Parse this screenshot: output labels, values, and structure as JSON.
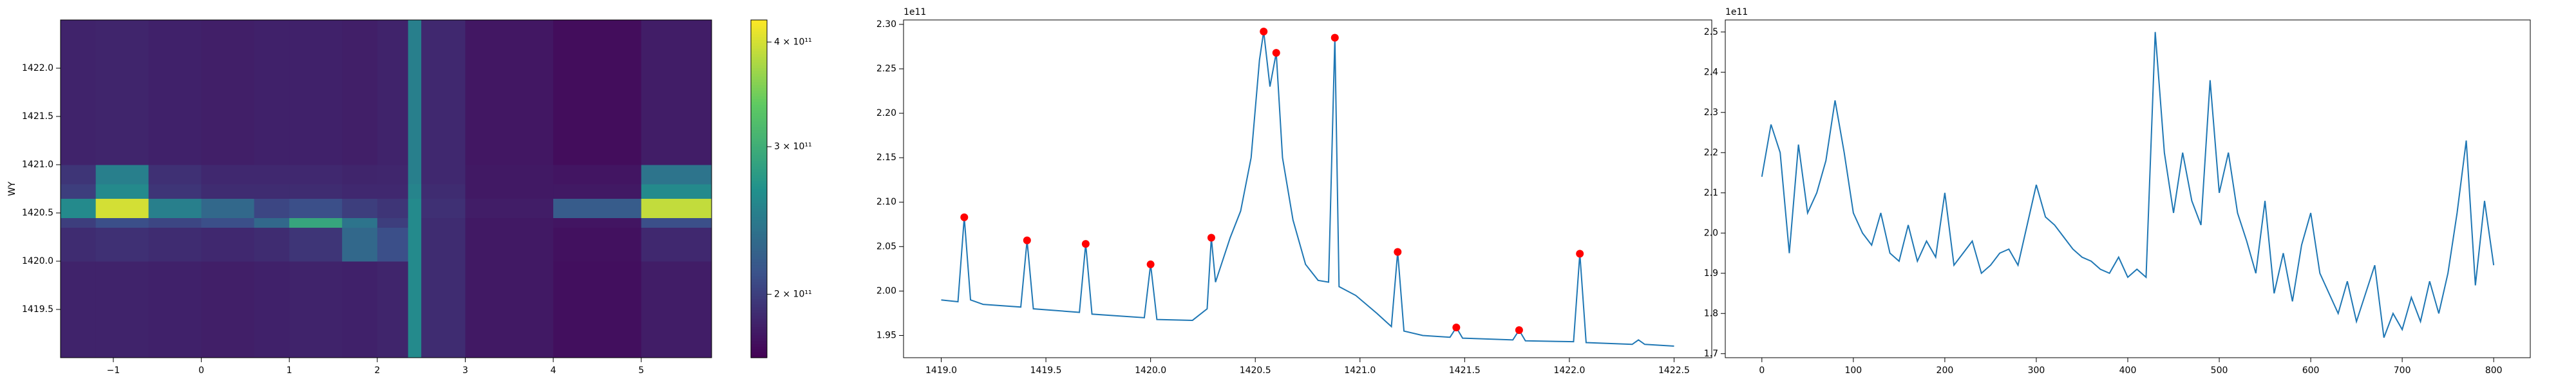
{
  "chart_data": [
    {
      "type": "heatmap",
      "ylabel": "WY",
      "colormap": "viridis",
      "zscale": "log",
      "xlim": [
        -1.6,
        5.8
      ],
      "ylim": [
        1419.0,
        1422.5
      ],
      "xticks": [
        {
          "value": -1,
          "label": "−1"
        },
        0,
        1,
        2,
        3,
        4,
        5
      ],
      "yticks": [
        1419.5,
        {
          "value": 1420.0,
          "label": "1420.0"
        },
        1420.5,
        {
          "value": 1421.0,
          "label": "1421.0"
        },
        1421.5,
        {
          "value": 1422.0,
          "label": "1422.0"
        }
      ],
      "xedges": [
        -1.6,
        -1.2,
        -0.6,
        0,
        0.6,
        1.0,
        1.6,
        2.0,
        2.35,
        2.5,
        3.0,
        4.0,
        5.0,
        5.8
      ],
      "yedges": [
        1419.0,
        1420.0,
        1420.35,
        1420.45,
        1420.65,
        1420.8,
        1421.0,
        1422.5
      ],
      "z": [
        [
          185000000000.0,
          185000000000.0,
          184000000000.0,
          183000000000.0,
          184000000000.0,
          185000000000.0,
          184000000000.0,
          186000000000.0,
          260000000000.0,
          190000000000.0,
          180000000000.0,
          175000000000.0,
          182000000000.0
        ],
        [
          190000000000.0,
          192000000000.0,
          190000000000.0,
          188000000000.0,
          190000000000.0,
          195000000000.0,
          230000000000.0,
          210000000000.0,
          260000000000.0,
          190000000000.0,
          180000000000.0,
          176000000000.0,
          188000000000.0
        ],
        [
          200000000000.0,
          210000000000.0,
          205000000000.0,
          210000000000.0,
          230000000000.0,
          290000000000.0,
          240000000000.0,
          200000000000.0,
          260000000000.0,
          190000000000.0,
          180000000000.0,
          178000000000.0,
          210000000000.0
        ],
        [
          260000000000.0,
          400000000000.0,
          250000000000.0,
          230000000000.0,
          205000000000.0,
          210000000000.0,
          200000000000.0,
          195000000000.0,
          260000000000.0,
          192000000000.0,
          182000000000.0,
          220000000000.0,
          390000000000.0
        ],
        [
          200000000000.0,
          260000000000.0,
          195000000000.0,
          190000000000.0,
          190000000000.0,
          190000000000.0,
          188000000000.0,
          188000000000.0,
          255000000000.0,
          190000000000.0,
          180000000000.0,
          180000000000.0,
          260000000000.0
        ],
        [
          195000000000.0,
          250000000000.0,
          192000000000.0,
          188000000000.0,
          188000000000.0,
          188000000000.0,
          186000000000.0,
          187000000000.0,
          250000000000.0,
          188000000000.0,
          180000000000.0,
          178000000000.0,
          240000000000.0
        ],
        [
          185000000000.0,
          186000000000.0,
          184000000000.0,
          183000000000.0,
          184000000000.0,
          184000000000.0,
          183000000000.0,
          185000000000.0,
          250000000000.0,
          188000000000.0,
          179000000000.0,
          174000000000.0,
          182000000000.0
        ]
      ],
      "zlim": [
        168000000000.0,
        425000000000.0
      ],
      "zticks": [
        {
          "value": 200000000000.0,
          "label": "2 × 10¹¹"
        },
        {
          "value": 300000000000.0,
          "label": "3 × 10¹¹"
        },
        {
          "value": 400000000000.0,
          "label": "4 × 10¹¹"
        }
      ]
    },
    {
      "type": "line",
      "y_offset_label": "1e11",
      "xlim": [
        1418.82,
        1422.68
      ],
      "ylim": [
        192500000000.0,
        230500000000.0
      ],
      "xticks": [
        {
          "value": 1419.0,
          "label": "1419.0"
        },
        1419.5,
        {
          "value": 1420.0,
          "label": "1420.0"
        },
        1420.5,
        {
          "value": 1421.0,
          "label": "1421.0"
        },
        1421.5,
        {
          "value": 1422.0,
          "label": "1422.0"
        },
        1422.5
      ],
      "yticks": [
        {
          "value": 195000000000.0,
          "label": "1.95"
        },
        {
          "value": 200000000000.0,
          "label": "2.00"
        },
        {
          "value": 205000000000.0,
          "label": "2.05"
        },
        {
          "value": 210000000000.0,
          "label": "2.10"
        },
        {
          "value": 215000000000.0,
          "label": "2.15"
        },
        {
          "value": 220000000000.0,
          "label": "2.20"
        },
        {
          "value": 225000000000.0,
          "label": "2.25"
        },
        {
          "value": 230000000000.0,
          "label": "2.30"
        }
      ],
      "series": [
        {
          "kind": "line",
          "color": "#1f77b4",
          "x": [
            1419.0,
            1419.08,
            1419.11,
            1419.14,
            1419.2,
            1419.38,
            1419.41,
            1419.44,
            1419.66,
            1419.69,
            1419.72,
            1419.97,
            1420.0,
            1420.03,
            1420.2,
            1420.27,
            1420.29,
            1420.31,
            1420.38,
            1420.43,
            1420.48,
            1420.52,
            1420.54,
            1420.57,
            1420.6,
            1420.63,
            1420.68,
            1420.74,
            1420.8,
            1420.85,
            1420.88,
            1420.9,
            1420.98,
            1421.08,
            1421.15,
            1421.18,
            1421.21,
            1421.3,
            1421.43,
            1421.46,
            1421.49,
            1421.73,
            1421.76,
            1421.79,
            1422.02,
            1422.05,
            1422.08,
            1422.3,
            1422.33,
            1422.36,
            1422.5
          ],
          "values": [
            199000000000.0,
            198800000000.0,
            208300000000.0,
            199000000000.0,
            198500000000.0,
            198200000000.0,
            205700000000.0,
            198000000000.0,
            197600000000.0,
            205300000000.0,
            197400000000.0,
            197000000000.0,
            203000000000.0,
            196800000000.0,
            196700000000.0,
            198000000000.0,
            206000000000.0,
            201000000000.0,
            206000000000.0,
            209000000000.0,
            215000000000.0,
            226000000000.0,
            229200000000.0,
            223000000000.0,
            226800000000.0,
            215000000000.0,
            208000000000.0,
            203000000000.0,
            201200000000.0,
            201000000000.0,
            228500000000.0,
            200500000000.0,
            199500000000.0,
            197500000000.0,
            196000000000.0,
            204400000000.0,
            195500000000.0,
            195000000000.0,
            194800000000.0,
            195900000000.0,
            194700000000.0,
            194500000000.0,
            195600000000.0,
            194400000000.0,
            194300000000.0,
            204200000000.0,
            194200000000.0,
            194000000000.0,
            194500000000.0,
            194000000000.0,
            193800000000.0
          ]
        },
        {
          "kind": "scatter",
          "color": "#ff0000",
          "x": [
            1419.11,
            1419.41,
            1419.69,
            1420.0,
            1420.29,
            1420.54,
            1420.6,
            1420.88,
            1421.18,
            1421.46,
            1421.76,
            1422.05
          ],
          "values": [
            208300000000.0,
            205700000000.0,
            205300000000.0,
            203000000000.0,
            206000000000.0,
            229200000000.0,
            226800000000.0,
            228500000000.0,
            204400000000.0,
            195900000000.0,
            195600000000.0,
            204200000000.0
          ]
        }
      ]
    },
    {
      "type": "line",
      "y_offset_label": "1e11",
      "xlim": [
        -40,
        840
      ],
      "ylim": [
        169000000000.0,
        253000000000.0
      ],
      "xticks": [
        0,
        100,
        200,
        300,
        400,
        500,
        600,
        700,
        800
      ],
      "yticks": [
        {
          "value": 170000000000.0,
          "label": "1.7"
        },
        {
          "value": 180000000000.0,
          "label": "1.8"
        },
        {
          "value": 190000000000.0,
          "label": "1.9"
        },
        {
          "value": 200000000000.0,
          "label": "2.0"
        },
        {
          "value": 210000000000.0,
          "label": "2.1"
        },
        {
          "value": 220000000000.0,
          "label": "2.2"
        },
        {
          "value": 230000000000.0,
          "label": "2.3"
        },
        {
          "value": 240000000000.0,
          "label": "2.4"
        },
        {
          "value": 250000000000.0,
          "label": "2.5"
        }
      ],
      "series": [
        {
          "kind": "line",
          "color": "#1f77b4",
          "x": [
            0,
            10,
            20,
            30,
            40,
            50,
            60,
            70,
            80,
            90,
            100,
            110,
            120,
            130,
            140,
            150,
            160,
            170,
            180,
            190,
            200,
            210,
            220,
            230,
            240,
            250,
            260,
            270,
            280,
            290,
            300,
            310,
            320,
            330,
            340,
            350,
            360,
            370,
            380,
            390,
            400,
            410,
            420,
            430,
            440,
            450,
            460,
            470,
            480,
            490,
            500,
            510,
            520,
            530,
            540,
            550,
            560,
            570,
            580,
            590,
            600,
            610,
            620,
            630,
            640,
            650,
            660,
            670,
            680,
            690,
            700,
            710,
            720,
            730,
            740,
            750,
            760,
            770,
            780,
            790,
            800
          ],
          "values": [
            214000000000.0,
            227000000000.0,
            220000000000.0,
            195000000000.0,
            222000000000.0,
            205000000000.0,
            210000000000.0,
            218000000000.0,
            233000000000.0,
            220000000000.0,
            205000000000.0,
            200000000000.0,
            197000000000.0,
            205000000000.0,
            195000000000.0,
            193000000000.0,
            202000000000.0,
            193000000000.0,
            198000000000.0,
            194000000000.0,
            210000000000.0,
            192000000000.0,
            195000000000.0,
            198000000000.0,
            190000000000.0,
            192000000000.0,
            195000000000.0,
            196000000000.0,
            192000000000.0,
            202000000000.0,
            212000000000.0,
            204000000000.0,
            202000000000.0,
            199000000000.0,
            196000000000.0,
            194000000000.0,
            193000000000.0,
            191000000000.0,
            190000000000.0,
            194000000000.0,
            189000000000.0,
            191000000000.0,
            189000000000.0,
            250000000000.0,
            220000000000.0,
            205000000000.0,
            220000000000.0,
            208000000000.0,
            202000000000.0,
            238000000000.0,
            210000000000.0,
            220000000000.0,
            205000000000.0,
            198000000000.0,
            190000000000.0,
            208000000000.0,
            185000000000.0,
            195000000000.0,
            183000000000.0,
            197000000000.0,
            205000000000.0,
            190000000000.0,
            185000000000.0,
            180000000000.0,
            188000000000.0,
            178000000000.0,
            185000000000.0,
            192000000000.0,
            174000000000.0,
            180000000000.0,
            176000000000.0,
            184000000000.0,
            178000000000.0,
            188000000000.0,
            180000000000.0,
            190000000000.0,
            205000000000.0,
            223000000000.0,
            187000000000.0,
            208000000000.0,
            192000000000.0
          ]
        }
      ]
    }
  ]
}
